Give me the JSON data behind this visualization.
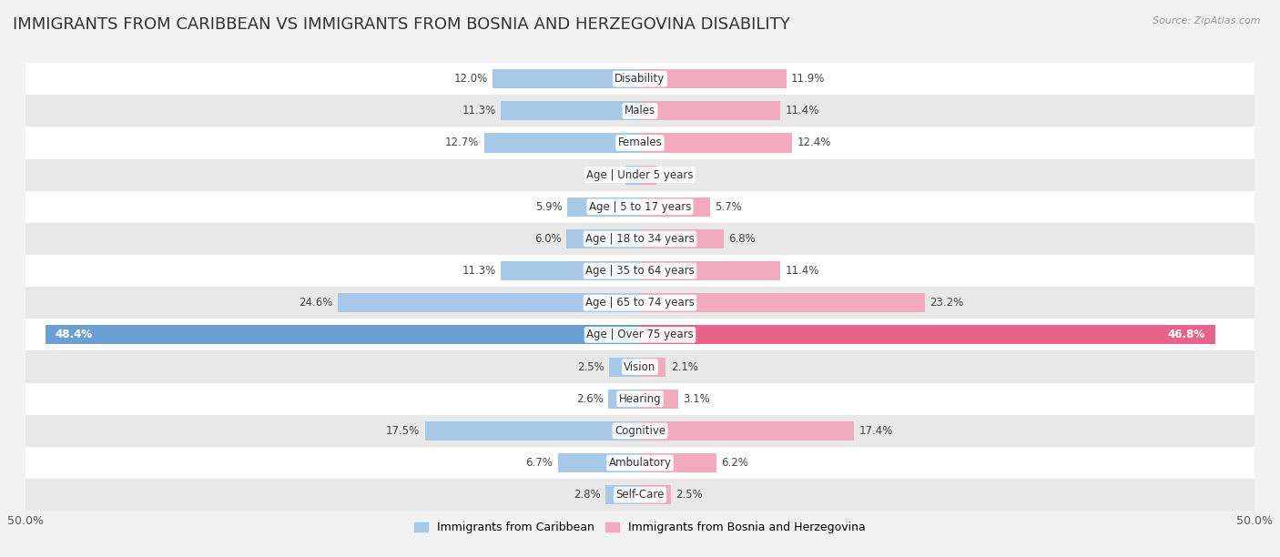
{
  "title": "IMMIGRANTS FROM CARIBBEAN VS IMMIGRANTS FROM BOSNIA AND HERZEGOVINA DISABILITY",
  "source": "Source: ZipAtlas.com",
  "categories": [
    "Disability",
    "Males",
    "Females",
    "Age | Under 5 years",
    "Age | 5 to 17 years",
    "Age | 18 to 34 years",
    "Age | 35 to 64 years",
    "Age | 65 to 74 years",
    "Age | Over 75 years",
    "Vision",
    "Hearing",
    "Cognitive",
    "Ambulatory",
    "Self-Care"
  ],
  "left_values": [
    12.0,
    11.3,
    12.7,
    1.2,
    5.9,
    6.0,
    11.3,
    24.6,
    48.4,
    2.5,
    2.6,
    17.5,
    6.7,
    2.8
  ],
  "right_values": [
    11.9,
    11.4,
    12.4,
    1.3,
    5.7,
    6.8,
    11.4,
    23.2,
    46.8,
    2.1,
    3.1,
    17.4,
    6.2,
    2.5
  ],
  "left_color_normal": "#a8c8e8",
  "left_color_highlight": "#6b9fd4",
  "right_color_normal": "#f2aabe",
  "right_color_highlight": "#e8638a",
  "highlight_index": 8,
  "left_label": "Immigrants from Caribbean",
  "right_label": "Immigrants from Bosnia and Herzegovina",
  "background_color": "#f2f2f2",
  "row_color_odd": "#ffffff",
  "row_color_even": "#e8e8e8",
  "axis_max": 50.0,
  "title_fontsize": 13,
  "label_fontsize": 9,
  "value_fontsize": 8.5,
  "bar_height": 0.6
}
